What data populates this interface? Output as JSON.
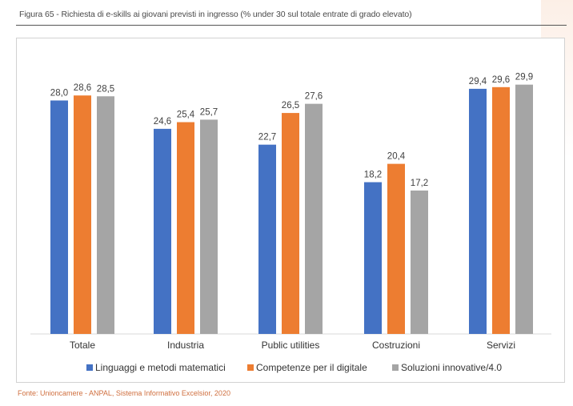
{
  "figure": {
    "title": "Figura 65 - Richiesta di e-skills ai giovani previsti in ingresso (% under 30 sul totale entrate di grado elevato)",
    "source": "Fonte: Unioncamere - ANPAL, Sistema Informativo Excelsior, 2020"
  },
  "chart_data": {
    "type": "bar",
    "categories": [
      "Totale",
      "Industria",
      "Public utilities",
      "Costruzioni",
      "Servizi"
    ],
    "series": [
      {
        "name": "Linguaggi e metodi matematici",
        "color": "#4472c4",
        "values": [
          28.0,
          24.6,
          22.7,
          18.2,
          29.4
        ],
        "labels": [
          "28,0",
          "24,6",
          "22,7",
          "18,2",
          "29,4"
        ]
      },
      {
        "name": "Competenze per il digitale",
        "color": "#ed7d31",
        "values": [
          28.6,
          25.4,
          26.5,
          20.4,
          29.6
        ],
        "labels": [
          "28,6",
          "25,4",
          "26,5",
          "20,4",
          "29,6"
        ]
      },
      {
        "name": "Soluzioni innovative/4.0",
        "color": "#a5a5a5",
        "values": [
          28.5,
          25.7,
          27.6,
          17.2,
          29.9
        ],
        "labels": [
          "28,5",
          "25,7",
          "27,6",
          "17,2",
          "29,9"
        ]
      }
    ],
    "ylim": [
      0,
      34
    ],
    "grid": false,
    "legend": "bottom"
  }
}
